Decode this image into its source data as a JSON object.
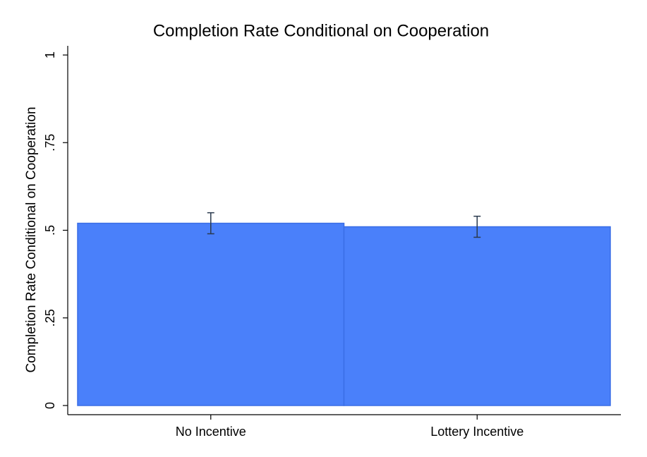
{
  "chart_data": {
    "type": "bar",
    "title": "Completion Rate Conditional on Cooperation",
    "y_label": "Completion Rate Conditional on Cooperation",
    "categories": [
      "No Incentive",
      "Lottery Incentive"
    ],
    "values": [
      0.52,
      0.51
    ],
    "errors": [
      0.03,
      0.03
    ],
    "color": "#4a80fa",
    "ylim": [
      0,
      1
    ],
    "yticks": [
      0,
      {
        "value": 0.25,
        "label": ".25"
      },
      {
        "value": 0.5,
        "label": ".5"
      },
      {
        "value": 0.75,
        "label": ".75"
      },
      1
    ],
    "grid": false
  }
}
